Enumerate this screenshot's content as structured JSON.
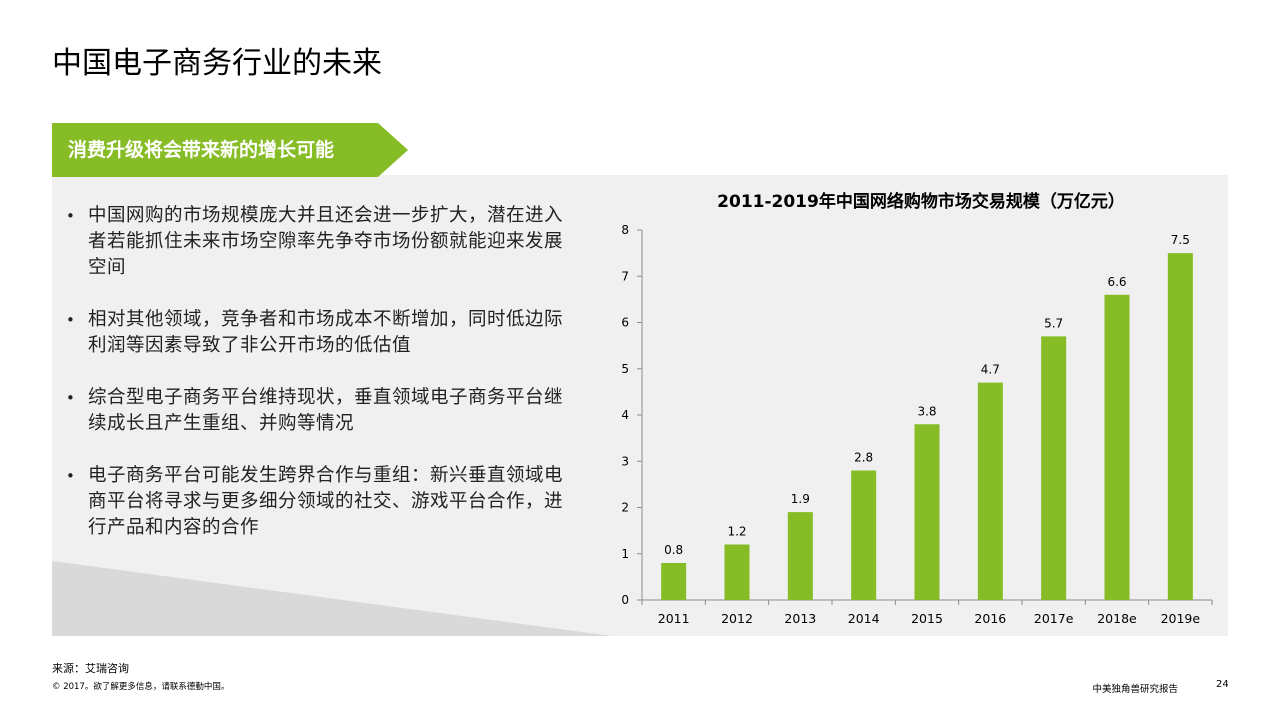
{
  "slide": {
    "title": "中国电子商务行业的未来",
    "banner": "消费升级将会带来新的增长可能"
  },
  "bullets": [
    "中国网购的市场规模庞大并且还会进一步扩大，潜在进入者若能抓住未来市场空隙率先争夺市场份额就能迎来发展空间",
    "相对其他领域，竞争者和市场成本不断增加，同时低边际利润等因素导致了非公开市场的低估值",
    "综合型电子商务平台维持现状，垂直领域电子商务平台继续成长且产生重组、并购等情况",
    "电子商务平台可能发生跨界合作与重组：新兴垂直领域电商平台将寻求与更多细分领域的社交、游戏平台合作，进行产品和内容的合作"
  ],
  "bullet_marker": "•",
  "colors": {
    "accent_green": "#86bc25",
    "panel_grey": "#f0f0f0",
    "wedge_grey": "#d9d9d9"
  },
  "chart_data": {
    "type": "bar",
    "title": "2011-2019年中国网络购物市场交易规模（万亿元）",
    "categories": [
      "2011",
      "2012",
      "2013",
      "2014",
      "2015",
      "2016",
      "2017e",
      "2018e",
      "2019e"
    ],
    "values": [
      0.8,
      1.2,
      1.9,
      2.8,
      3.8,
      4.7,
      5.7,
      6.6,
      7.5
    ],
    "value_labels": [
      "0.8",
      "1.2",
      "1.9",
      "2.8",
      "3.8",
      "4.7",
      "5.7",
      "6.6",
      "7.5"
    ],
    "y_ticks": [
      "0",
      "1",
      "2",
      "3",
      "4",
      "5",
      "6",
      "7",
      "8"
    ],
    "ylim": [
      0,
      8
    ],
    "xlabel": "",
    "ylabel": "",
    "grid": false,
    "legend": "none",
    "bar_color": "#86bc25"
  },
  "footer": {
    "source": "来源：艾瑞咨询",
    "copyright": "© 2017。欲了解更多信息，请联系德勤中国。",
    "report_name": "中美独角兽研究报告",
    "page_number": "24"
  }
}
